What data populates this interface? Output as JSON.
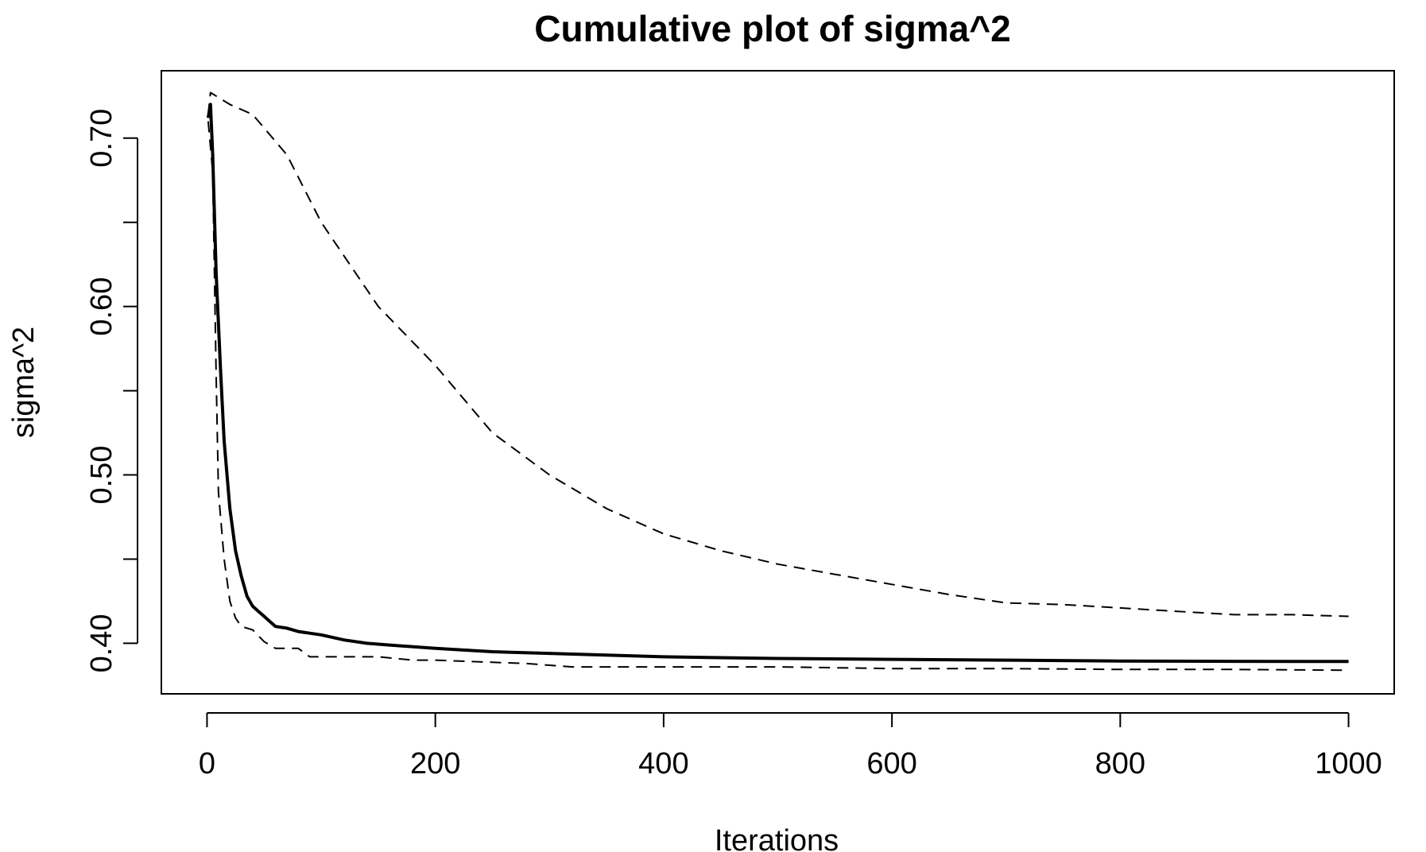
{
  "chart_data": {
    "type": "line",
    "title": "Cumulative plot of sigma^2",
    "xlabel": "Iterations",
    "ylabel": "sigma^2",
    "xlim": [
      -40,
      1040
    ],
    "ylim": [
      0.37,
      0.74
    ],
    "x_ticks": [
      0,
      200,
      400,
      600,
      800,
      1000
    ],
    "x_tick_labels": [
      "0",
      "200",
      "400",
      "600",
      "800",
      "1000"
    ],
    "y_ticks": [
      0.4,
      0.45,
      0.5,
      0.55,
      0.6,
      0.65,
      0.7
    ],
    "y_tick_labels": [
      "0.40",
      "",
      "0.50",
      "",
      "0.60",
      "",
      "0.70"
    ],
    "grid": false,
    "series": [
      {
        "style": "solid",
        "color": "#000000",
        "points": [
          [
            1,
            0.712
          ],
          [
            3,
            0.72
          ],
          [
            5,
            0.69
          ],
          [
            8,
            0.62
          ],
          [
            12,
            0.56
          ],
          [
            15,
            0.52
          ],
          [
            20,
            0.48
          ],
          [
            25,
            0.455
          ],
          [
            30,
            0.44
          ],
          [
            35,
            0.428
          ],
          [
            40,
            0.422
          ],
          [
            45,
            0.419
          ],
          [
            50,
            0.416
          ],
          [
            55,
            0.413
          ],
          [
            60,
            0.41
          ],
          [
            70,
            0.409
          ],
          [
            80,
            0.407
          ],
          [
            90,
            0.406
          ],
          [
            100,
            0.405
          ],
          [
            120,
            0.402
          ],
          [
            140,
            0.4
          ],
          [
            160,
            0.399
          ],
          [
            200,
            0.397
          ],
          [
            250,
            0.395
          ],
          [
            300,
            0.394
          ],
          [
            350,
            0.393
          ],
          [
            400,
            0.392
          ],
          [
            500,
            0.391
          ],
          [
            600,
            0.3905
          ],
          [
            700,
            0.39
          ],
          [
            800,
            0.3895
          ],
          [
            900,
            0.3893
          ],
          [
            1000,
            0.3892
          ]
        ]
      },
      {
        "style": "dashed",
        "color": "#000000",
        "points": [
          [
            1,
            0.71
          ],
          [
            5,
            0.68
          ],
          [
            8,
            0.56
          ],
          [
            10,
            0.49
          ],
          [
            15,
            0.45
          ],
          [
            20,
            0.425
          ],
          [
            25,
            0.415
          ],
          [
            30,
            0.41
          ],
          [
            40,
            0.408
          ],
          [
            50,
            0.401
          ],
          [
            60,
            0.397
          ],
          [
            80,
            0.397
          ],
          [
            90,
            0.392
          ],
          [
            120,
            0.392
          ],
          [
            150,
            0.392
          ],
          [
            180,
            0.39
          ],
          [
            200,
            0.39
          ],
          [
            280,
            0.388
          ],
          [
            300,
            0.387
          ],
          [
            320,
            0.386
          ],
          [
            400,
            0.386
          ],
          [
            500,
            0.386
          ],
          [
            600,
            0.385
          ],
          [
            700,
            0.385
          ],
          [
            800,
            0.3845
          ],
          [
            900,
            0.3845
          ],
          [
            1000,
            0.384
          ]
        ]
      },
      {
        "style": "dashed",
        "color": "#000000",
        "points": [
          [
            1,
            0.714
          ],
          [
            3,
            0.727
          ],
          [
            20,
            0.72
          ],
          [
            40,
            0.714
          ],
          [
            70,
            0.69
          ],
          [
            100,
            0.65
          ],
          [
            150,
            0.6
          ],
          [
            200,
            0.565
          ],
          [
            250,
            0.525
          ],
          [
            300,
            0.5
          ],
          [
            350,
            0.48
          ],
          [
            400,
            0.465
          ],
          [
            450,
            0.455
          ],
          [
            500,
            0.447
          ],
          [
            550,
            0.441
          ],
          [
            600,
            0.435
          ],
          [
            650,
            0.429
          ],
          [
            700,
            0.424
          ],
          [
            750,
            0.423
          ],
          [
            800,
            0.421
          ],
          [
            850,
            0.419
          ],
          [
            900,
            0.417
          ],
          [
            950,
            0.417
          ],
          [
            1000,
            0.416
          ]
        ]
      }
    ]
  }
}
